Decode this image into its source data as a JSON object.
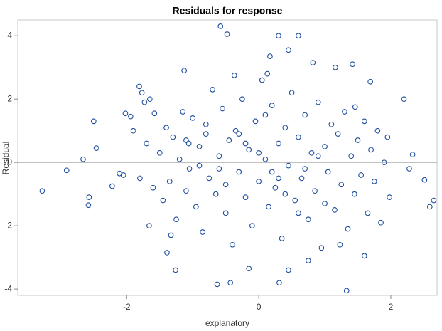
{
  "chart_data": {
    "type": "scatter",
    "title": "Residuals for response",
    "x_label": "explanatory",
    "y_label": "Residual",
    "color": "#1f4e9e",
    "refline": 0,
    "grid": false,
    "xlim": [
      -3.65,
      2.7
    ],
    "ylim": [
      -4.2,
      4.5
    ],
    "xticks": [
      -2,
      0,
      2
    ],
    "yticks": [
      -4,
      -2,
      0,
      2,
      4
    ],
    "x": [
      -3.28,
      -2.91,
      -2.66,
      -2.5,
      -2.46,
      -2.57,
      -2.58,
      -2.22,
      -2.11,
      -2.02,
      -1.94,
      -1.81,
      -1.77,
      -1.73,
      -1.65,
      -1.58,
      -1.66,
      -1.33,
      -1.26,
      -1.39,
      -1.13,
      -0.58,
      -0.48,
      -0.63,
      -0.43,
      0.6,
      0.3,
      0.45,
      0.17,
      1.33,
      1.42,
      1.16,
      1.69,
      2.2,
      2.33,
      2.28,
      2.51,
      2.65,
      2.59,
      1.98,
      1.6,
      1.23,
      -0.15,
      0.45,
      0.31,
      0.75,
      0.13,
      -0.37,
      0.82,
      1.46,
      -1.06,
      -0.8,
      -1.5,
      -1.45,
      -1.4,
      -1.35,
      -1.3,
      -1.25,
      -1.2,
      -1.15,
      -1.1,
      -1.05,
      -1.0,
      -0.95,
      -0.9,
      -0.85,
      -0.8,
      -0.75,
      -0.7,
      -0.65,
      -0.6,
      -0.55,
      -0.5,
      -0.45,
      -0.4,
      -0.35,
      -0.3,
      -0.25,
      -0.2,
      -0.15,
      -0.1,
      -0.05,
      0,
      0.05,
      0.1,
      0.15,
      0.2,
      0.25,
      0.3,
      0.35,
      0.4,
      0.45,
      0.5,
      0.55,
      0.6,
      0.65,
      0.7,
      0.75,
      0.8,
      0.85,
      0.9,
      0.95,
      1.0,
      1.05,
      1.1,
      1.15,
      1.2,
      1.25,
      1.3,
      1.35,
      1.4,
      1.45,
      1.5,
      1.55,
      1.6,
      1.65,
      1.7,
      1.75,
      1.8,
      1.85,
      1.9,
      1.95,
      -1.6,
      -1.7,
      -1.8,
      -1.9,
      -2.05,
      -0.6,
      0.2,
      0.0,
      -0.3,
      0.4,
      0.7,
      -0.9,
      1.0,
      -1.1,
      0.1,
      -0.5,
      0.6,
      0.3,
      -0.2,
      0.9
    ],
    "y": [
      -0.9,
      -0.25,
      0.1,
      1.3,
      0.45,
      -1.1,
      -1.35,
      -0.75,
      -0.35,
      1.55,
      1.45,
      2.4,
      2.2,
      1.9,
      2.0,
      1.55,
      -2.0,
      -2.3,
      -3.4,
      -2.85,
      2.9,
      4.3,
      4.05,
      -3.85,
      -3.8,
      4.0,
      4.0,
      3.55,
      3.35,
      -4.05,
      3.1,
      3.0,
      2.55,
      2.0,
      0.25,
      -0.2,
      -0.55,
      -1.2,
      -1.4,
      -1.1,
      -2.95,
      -2.6,
      -3.35,
      -3.4,
      -3.8,
      -3.1,
      2.8,
      2.75,
      3.15,
      1.75,
      0.6,
      1.2,
      0.3,
      -1.2,
      1.1,
      -0.6,
      0.8,
      -1.8,
      0.1,
      1.6,
      -0.9,
      -0.2,
      1.4,
      -1.4,
      0.5,
      -2.2,
      0.9,
      -0.5,
      2.3,
      -1.0,
      0.2,
      1.7,
      -1.6,
      0.7,
      -2.6,
      1.0,
      -0.3,
      2.0,
      -1.1,
      0.4,
      -2.0,
      1.3,
      -0.6,
      2.6,
      0.1,
      -1.4,
      1.8,
      -0.8,
      0.6,
      -2.4,
      1.1,
      -0.1,
      2.2,
      -1.2,
      0.8,
      -0.5,
      1.5,
      -1.8,
      0.3,
      -0.9,
      1.9,
      -2.7,
      0.5,
      -0.3,
      1.2,
      -1.5,
      0.9,
      -0.7,
      1.6,
      -2.1,
      0.2,
      -1.0,
      0.7,
      -0.4,
      1.3,
      -1.6,
      0.4,
      -0.6,
      1.0,
      -1.9,
      0.0,
      0.8,
      -0.8,
      0.6,
      -0.5,
      1.0,
      -0.4,
      -0.2,
      -0.3,
      0.3,
      0.9,
      -1.0,
      -0.2,
      -0.1,
      -1.3,
      0.7,
      1.5,
      -0.7,
      -1.6,
      -0.5,
      0.6,
      0.2
    ]
  }
}
